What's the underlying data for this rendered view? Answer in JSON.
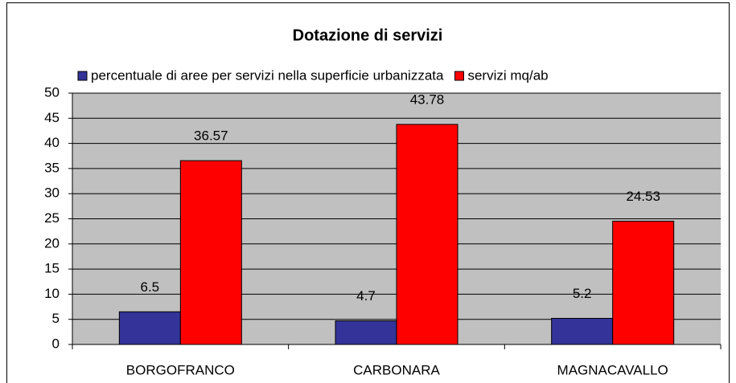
{
  "chart_data": {
    "type": "bar",
    "title": "Dotazione di servizi",
    "categories": [
      "BORGOFRANCO",
      "CARBONARA",
      "MAGNACAVALLO"
    ],
    "series": [
      {
        "name": "percentuale di aree per servizi nella superficie urbanizzata",
        "color": "#333399",
        "values": [
          6.5,
          4.7,
          5.2
        ]
      },
      {
        "name": "servizi mq/ab",
        "color": "#ff0000",
        "values": [
          36.57,
          43.78,
          24.53
        ]
      }
    ],
    "ylim": [
      0,
      50
    ],
    "yticks": [
      0,
      5,
      10,
      15,
      20,
      25,
      30,
      35,
      40,
      45,
      50
    ],
    "grid": true,
    "legend": "top",
    "plot_background": "#c0c0c0"
  }
}
